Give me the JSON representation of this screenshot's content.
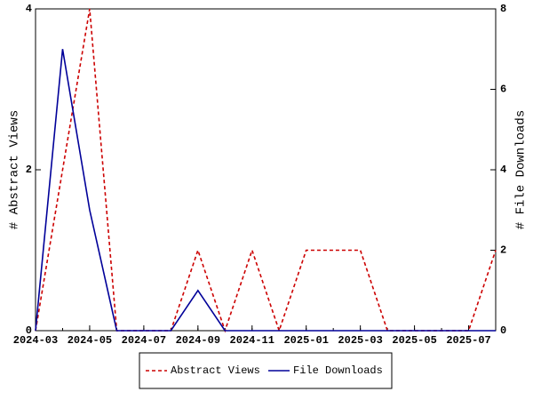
{
  "chart_data": {
    "type": "line",
    "x": [
      "2024-03",
      "2024-04",
      "2024-05",
      "2024-06",
      "2024-07",
      "2024-08",
      "2024-09",
      "2024-10",
      "2024-11",
      "2024-12",
      "2025-01",
      "2025-02",
      "2025-03",
      "2025-04",
      "2025-05",
      "2025-06",
      "2025-07",
      "2025-08"
    ],
    "xticks": [
      "2024-03",
      "2024-05",
      "2024-07",
      "2024-09",
      "2024-11",
      "2025-01",
      "2025-03",
      "2025-05",
      "2025-07"
    ],
    "y_label": "# Abstract Views",
    "y2_label": "# File Downloads",
    "ylim": [
      0,
      4
    ],
    "yticks": [
      0,
      2,
      4
    ],
    "y2lim": [
      0,
      8
    ],
    "y2ticks": [
      0,
      2,
      4,
      6,
      8
    ],
    "legend": "bottom",
    "series": [
      {
        "name": "Abstract Views",
        "color": "#cc0000",
        "dash": true,
        "axis": "y",
        "values": [
          0,
          2,
          4,
          0,
          0,
          0,
          1,
          0,
          1,
          0,
          1,
          1,
          1,
          0,
          0,
          0,
          0,
          1
        ]
      },
      {
        "name": "File Downloads",
        "color": "#000099",
        "dash": false,
        "axis": "y2",
        "values": [
          0,
          7,
          3,
          0,
          0,
          0,
          1,
          0,
          0,
          0,
          0,
          0,
          0,
          0,
          0,
          0,
          0,
          0
        ]
      }
    ]
  }
}
